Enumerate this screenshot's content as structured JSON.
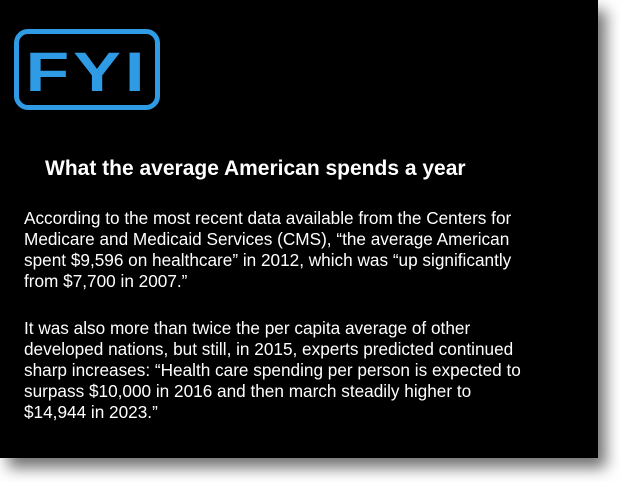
{
  "logo": {
    "text": "FYI",
    "color": "#2f9be4"
  },
  "title": "What the average American spends a year",
  "paragraphs": [
    {
      "lines": [
        "According to the most recent data available from the Centers for",
        "Medicare and Medicaid Services (CMS), “the average American",
        "spent $9,596 on healthcare” in 2012, which was “up significantly",
        "from $7,700 in 2007.”"
      ]
    },
    {
      "lines": [
        "It was also more than twice the per capita average of other",
        "developed nations, but still, in 2015, experts predicted continued",
        "sharp increases: “Health care spending per person is expected to",
        "surpass $10,000 in 2016 and then march steadily higher to",
        "$14,944 in 2023.”"
      ]
    }
  ],
  "colors": {
    "background": "#000000",
    "text": "#ffffff",
    "accent": "#2f9be4"
  }
}
